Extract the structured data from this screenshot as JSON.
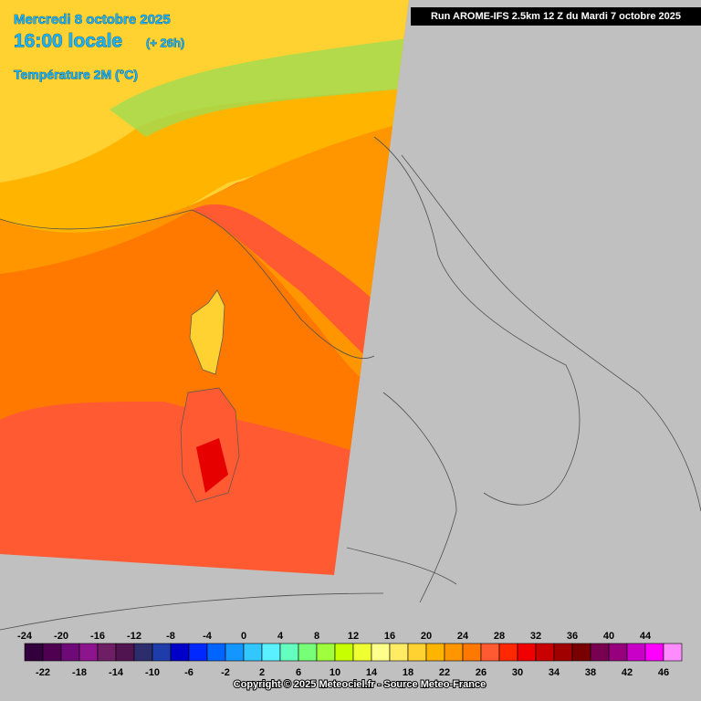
{
  "header": {
    "date": "Mercredi 8 octobre 2025",
    "time": "16:00 locale",
    "lead": "(+ 26h)",
    "variable": "Température 2M (°C)"
  },
  "run": "Run AROME-IFS 2.5km 12 Z du Mardi 7 octobre 2025",
  "legend": {
    "values": [
      -24,
      -22,
      -20,
      -18,
      -16,
      -14,
      -12,
      -10,
      -8,
      -6,
      -4,
      -2,
      0,
      2,
      4,
      6,
      8,
      10,
      12,
      14,
      16,
      18,
      20,
      22,
      24,
      26,
      28,
      30,
      32,
      34,
      36,
      38,
      40,
      42,
      44,
      46
    ],
    "colors": [
      "#32003c",
      "#500050",
      "#6e0a78",
      "#8c148c",
      "#6e1e64",
      "#501450",
      "#2d2d6e",
      "#1e3caa",
      "#0000c8",
      "#0028ff",
      "#0064ff",
      "#1496ff",
      "#32c8ff",
      "#5af0ff",
      "#64ffbe",
      "#78ff78",
      "#a0ff3c",
      "#c8ff00",
      "#f0ff32",
      "#ffff8c",
      "#ffeb64",
      "#ffd232",
      "#ffb400",
      "#ff9600",
      "#ff7800",
      "#ff5a32",
      "#ff2800",
      "#f00000",
      "#c80000",
      "#a00000",
      "#780000",
      "#780050",
      "#96007d",
      "#c800c8",
      "#ff00ff",
      "#ff8cff"
    ]
  },
  "copyright": "Copyright © 2025 Meteociel.fr - Source Meteo-France"
}
